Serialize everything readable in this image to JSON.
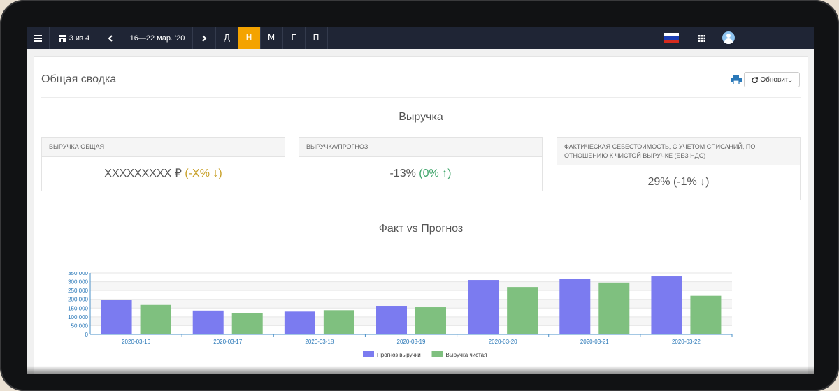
{
  "topbar": {
    "menu_icon": "hamburger-icon",
    "store_icon": "store-icon",
    "store_label": "3 из 4",
    "prev_icon": "chevron-left-icon",
    "date_range": "16—22 мар. '20",
    "next_icon": "chevron-right-icon",
    "periods": [
      {
        "label": "Д",
        "active": false
      },
      {
        "label": "Н",
        "active": true
      },
      {
        "label": "М",
        "active": false
      },
      {
        "label": "Г",
        "active": false
      },
      {
        "label": "П",
        "active": false
      }
    ],
    "accent_color": "#f4a300",
    "flag_icon": "russia-flag-icon",
    "apps_icon": "grid-icon",
    "avatar_icon": "user-avatar-icon"
  },
  "page": {
    "title": "Общая сводка",
    "print_icon": "printer-icon",
    "refresh_icon": "refresh-icon",
    "refresh_label": "Обновить"
  },
  "revenue": {
    "title": "Выручка",
    "cards": [
      {
        "head": "ВЫРУЧКА ОБЩАЯ",
        "value": "XXXXXXXXX ₽",
        "delta": "(-X% ↓)"
      },
      {
        "head": "ВЫРУЧКА/ПРОГНОЗ",
        "value": "-13%",
        "delta": "(0% ↑)"
      },
      {
        "head": "ФАКТИЧЕСКАЯ СЕБЕСТОИМОСТЬ, С УЧЕТОМ СПИСАНИЙ, ПО ОТНОШЕНИЮ К ЧИСТОЙ ВЫРУЧКЕ (БЕЗ НДС)",
        "value": "29%",
        "delta": "(-1% ↓)"
      }
    ]
  },
  "chart_data": {
    "type": "bar",
    "title": "Факт vs Прогноз",
    "categories": [
      "2020-03-16",
      "2020-03-17",
      "2020-03-18",
      "2020-03-19",
      "2020-03-20",
      "2020-03-21",
      "2020-03-22"
    ],
    "series": [
      {
        "name": "Прогноз выручки",
        "color": "#7b7bf0",
        "values": [
          195000,
          136000,
          130000,
          163000,
          310000,
          315000,
          330000
        ]
      },
      {
        "name": "Выручка чистая",
        "color": "#7fc07f",
        "values": [
          168000,
          122000,
          138000,
          155000,
          270000,
          295000,
          220000
        ]
      }
    ],
    "yticks": [
      "0",
      "50,000",
      "100,000",
      "150,000",
      "200,000",
      "250,000",
      "300,000",
      "350,000"
    ],
    "ylim": [
      0,
      350000
    ],
    "grid": true,
    "legend_position": "bottom-center"
  }
}
